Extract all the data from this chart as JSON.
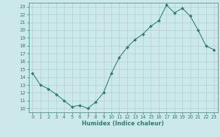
{
  "x": [
    0,
    1,
    2,
    3,
    4,
    5,
    6,
    7,
    8,
    9,
    10,
    11,
    12,
    13,
    14,
    15,
    16,
    17,
    18,
    19,
    20,
    21,
    22,
    23
  ],
  "y": [
    14.5,
    13.0,
    12.5,
    11.8,
    11.0,
    10.2,
    10.4,
    10.0,
    10.8,
    12.0,
    14.5,
    16.5,
    17.8,
    18.8,
    19.5,
    20.5,
    21.2,
    23.2,
    22.2,
    22.8,
    21.8,
    20.0,
    18.0,
    17.5
  ],
  "line_color": "#2d7d6e",
  "marker": "D",
  "marker_size": 2,
  "bg_color": "#cce8ea",
  "grid_color": "#aacfcf",
  "xlabel": "Humidex (Indice chaleur)",
  "ylim": [
    10,
    23
  ],
  "xlim": [
    -0.5,
    23.5
  ],
  "yticks": [
    10,
    11,
    12,
    13,
    14,
    15,
    16,
    17,
    18,
    19,
    20,
    21,
    22,
    23
  ],
  "xticks": [
    0,
    1,
    2,
    3,
    4,
    5,
    6,
    7,
    8,
    9,
    10,
    11,
    12,
    13,
    14,
    15,
    16,
    17,
    18,
    19,
    20,
    21,
    22,
    23
  ],
  "tick_color": "#2d7d6e",
  "label_color": "#2d7d6e",
  "axis_color": "#2d7d6e",
  "tick_fontsize": 5.0,
  "xlabel_fontsize": 6.0
}
